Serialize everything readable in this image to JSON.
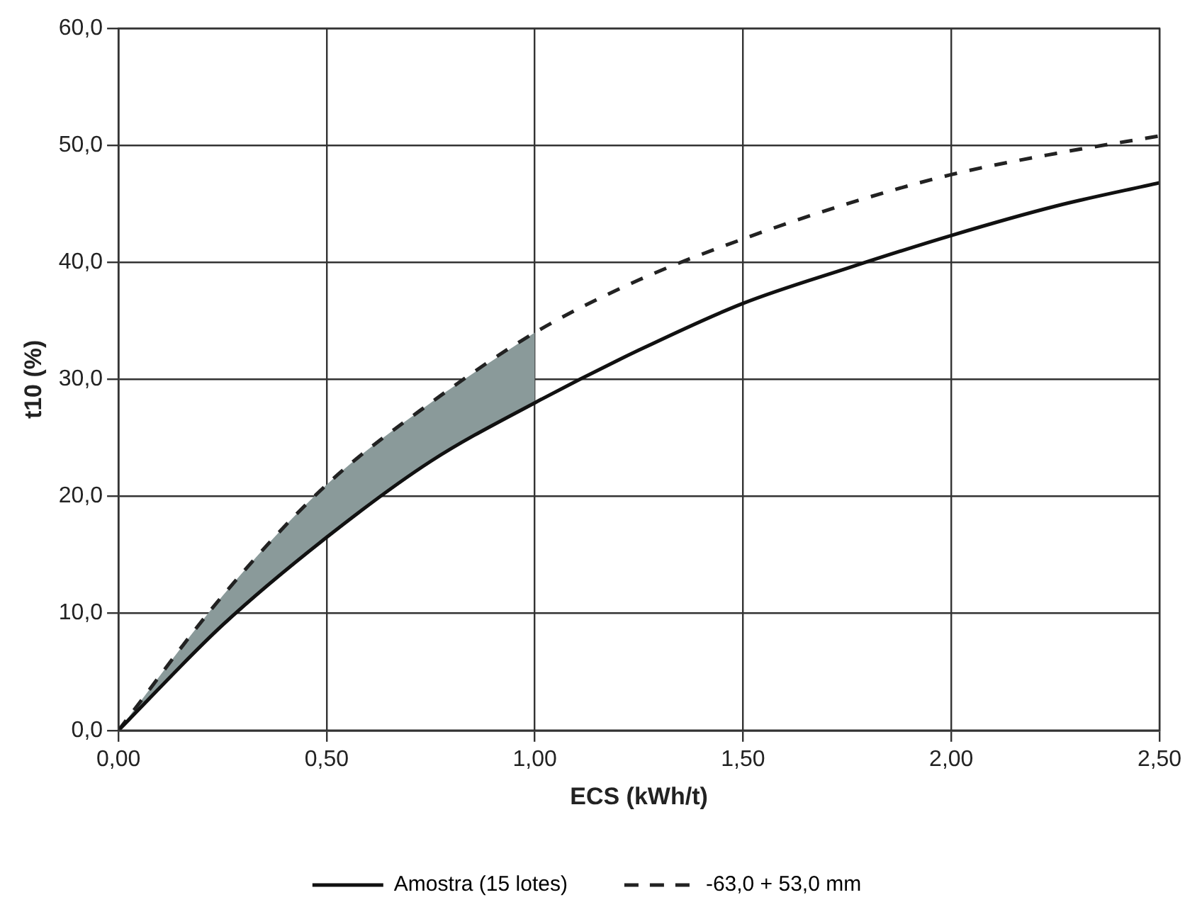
{
  "chart_data": {
    "type": "line",
    "xlabel": "ECS (kWh/t)",
    "ylabel": "t10 (%)",
    "x": [
      0,
      0.25,
      0.5,
      0.75,
      1.0,
      1.25,
      1.5,
      1.75,
      2.0,
      2.25,
      2.5
    ],
    "series": [
      {
        "name": "Amostra (15 lotes)",
        "color": "#111111",
        "line_style": "solid",
        "values": [
          0,
          9,
          16.5,
          23,
          28,
          32.5,
          36.5,
          39.5,
          42.3,
          44.8,
          46.8
        ]
      },
      {
        "name": "-63,0 + 53,0 mm",
        "color": "#222222",
        "line_style": "dashed",
        "values": [
          0,
          11.5,
          21,
          28,
          34,
          38.5,
          42,
          45,
          47.5,
          49.3,
          50.8
        ],
        "lower": [
          0,
          9,
          16.5,
          23,
          28,
          null,
          null,
          null,
          null,
          null,
          null
        ],
        "upper": [
          0,
          11.5,
          21,
          28,
          34,
          null,
          null,
          null,
          null,
          null,
          null
        ]
      }
    ],
    "xlim": [
      0,
      2.5
    ],
    "xticks": [
      {
        "value": 0,
        "label": "0,00"
      },
      {
        "value": 0.5,
        "label": "0,50"
      },
      {
        "value": 1,
        "label": "1,00"
      },
      {
        "value": 1.5,
        "label": "1,50"
      },
      {
        "value": 2,
        "label": "2,00"
      },
      {
        "value": 2.5,
        "label": "2,50"
      }
    ],
    "ylim": [
      0,
      60
    ],
    "yticks": [
      {
        "value": 0,
        "label": "0,0"
      },
      {
        "value": 10,
        "label": "10,0"
      },
      {
        "value": 20,
        "label": "20,0"
      },
      {
        "value": 30,
        "label": "30,0"
      },
      {
        "value": 40,
        "label": "40,0"
      },
      {
        "value": 50,
        "label": "50,0"
      },
      {
        "value": 60,
        "label": "60,0"
      }
    ],
    "grid": true,
    "legend": "bottom",
    "marker": "none"
  }
}
